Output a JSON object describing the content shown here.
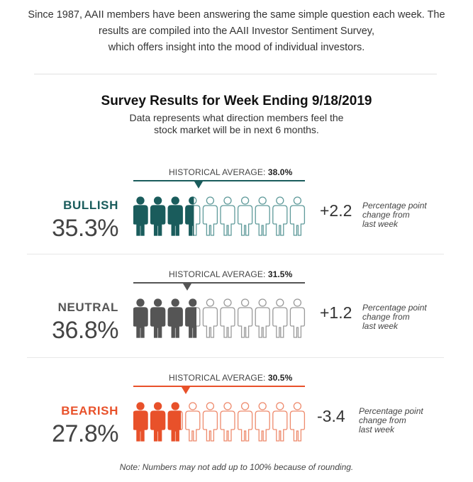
{
  "intro": {
    "line1": "Since 1987, AAII members have been answering the same simple question each week. The",
    "line2": "results are compiled into the AAII Investor Sentiment Survey,",
    "line3": "which offers insight into the mood of individual investors."
  },
  "survey": {
    "title": "Survey Results for Week Ending 9/18/2019",
    "desc_line1": "Data represents what direction members feel the",
    "desc_line2": "stock market will be in next 6 months."
  },
  "historical_label": "HISTORICAL AVERAGE:",
  "sections": {
    "bullish": {
      "label": "BULLISH",
      "value": "35.3%",
      "historical_value": "38.0%",
      "historical_fraction": 0.38,
      "filled_fraction": 0.353,
      "change": "+2.2",
      "change_line1": "Percentage point",
      "change_line2": "change from",
      "change_line3": "last week",
      "color": "#1a5c5c",
      "outline_color": "#5f9a9a"
    },
    "neutral": {
      "label": "NEUTRAL",
      "value": "36.8%",
      "historical_value": "31.5%",
      "historical_fraction": 0.315,
      "filled_fraction": 0.368,
      "change": "+1.2",
      "change_line1": "Percentage point",
      "change_line2": "change from",
      "change_line3": "last week",
      "color": "#555555",
      "outline_color": "#9a9a9a"
    },
    "bearish": {
      "label": "BEARISH",
      "value": "27.8%",
      "historical_value": "30.5%",
      "historical_fraction": 0.305,
      "filled_fraction": 0.278,
      "change": "-3.4",
      "change_line1": "Percentage point",
      "change_line2": "change from",
      "change_line3": "last week",
      "color": "#e8512a",
      "outline_color": "#ee8a6c"
    }
  },
  "note": "Note: Numbers may not add up to 100% because of rounding."
}
